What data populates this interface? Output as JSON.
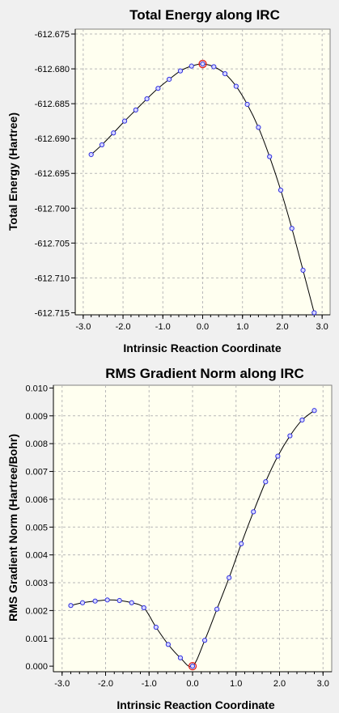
{
  "chart_data": [
    {
      "type": "line",
      "title": "Total Energy along IRC",
      "xlabel": "Intrinsic Reaction Coordinate",
      "ylabel": "Total Energy (Hartree)",
      "xlim": [
        -3.2,
        3.2
      ],
      "ylim": [
        -612.7153,
        -612.6743
      ],
      "xticks": [
        -3.0,
        -2.0,
        -1.0,
        0.0,
        1.0,
        2.0,
        3.0
      ],
      "xtick_labels": [
        "-3.0",
        "-2.0",
        "-1.0",
        "0.0",
        "1.0",
        "2.0",
        "3.0"
      ],
      "yticks": [
        -612.675,
        -612.68,
        -612.685,
        -612.69,
        -612.695,
        -612.7,
        -612.705,
        -612.71,
        -612.715
      ],
      "ytick_labels": [
        "-612.675",
        "-612.680",
        "-612.685",
        "-612.690",
        "-612.695",
        "-612.700",
        "-612.705",
        "-612.710",
        "-612.715"
      ],
      "grid": true,
      "line_color": "#000000",
      "marker_color": "#3030e0",
      "highlight_color": "#e02020",
      "highlight_x": 0.0,
      "x": [
        -2.8,
        -2.53,
        -2.24,
        -1.96,
        -1.68,
        -1.4,
        -1.12,
        -0.84,
        -0.56,
        -0.28,
        0.0,
        0.28,
        0.56,
        0.84,
        1.12,
        1.4,
        1.68,
        1.96,
        2.24,
        2.52,
        2.8
      ],
      "y": [
        -612.6923,
        -612.6909,
        -612.6892,
        -612.6875,
        -612.6859,
        -612.6843,
        -612.6828,
        -612.6815,
        -612.6803,
        -612.6796,
        -612.6793,
        -612.6797,
        -612.6807,
        -612.6825,
        -612.6851,
        -612.6884,
        -612.6926,
        -612.6974,
        -612.7029,
        -612.7089,
        -612.715
      ]
    },
    {
      "type": "line",
      "title": "RMS Gradient Norm along IRC",
      "xlabel": "Intrinsic Reaction Coordinate",
      "ylabel": "RMS Gradient Norm (Hartree/Bohr)",
      "xlim": [
        -3.2,
        3.2
      ],
      "ylim": [
        -0.0002,
        0.0101
      ],
      "xticks": [
        -3.0,
        -2.0,
        -1.0,
        0.0,
        1.0,
        2.0,
        3.0
      ],
      "xtick_labels": [
        "-3.0",
        "-2.0",
        "-1.0",
        "0.0",
        "1.0",
        "2.0",
        "3.0"
      ],
      "yticks": [
        0.0,
        0.001,
        0.002,
        0.003,
        0.004,
        0.005,
        0.006,
        0.007,
        0.008,
        0.009,
        0.01
      ],
      "ytick_labels": [
        "0.000",
        "0.001",
        "0.002",
        "0.003",
        "0.004",
        "0.005",
        "0.006",
        "0.007",
        "0.008",
        "0.009",
        "0.010"
      ],
      "grid": true,
      "line_color": "#000000",
      "marker_color": "#3030e0",
      "highlight_color": "#e02020",
      "highlight_x": 0.0,
      "x": [
        -2.8,
        -2.53,
        -2.24,
        -1.96,
        -1.68,
        -1.4,
        -1.12,
        -0.84,
        -0.56,
        -0.28,
        0.0,
        0.28,
        0.56,
        0.84,
        1.12,
        1.4,
        1.68,
        1.96,
        2.24,
        2.52,
        2.8
      ],
      "y": [
        0.00218,
        0.00228,
        0.00234,
        0.00238,
        0.00236,
        0.00228,
        0.0021,
        0.0014,
        0.00078,
        0.0003,
        0.0,
        0.00093,
        0.00205,
        0.00318,
        0.0044,
        0.00555,
        0.00663,
        0.00755,
        0.00828,
        0.00885,
        0.00919
      ]
    }
  ]
}
